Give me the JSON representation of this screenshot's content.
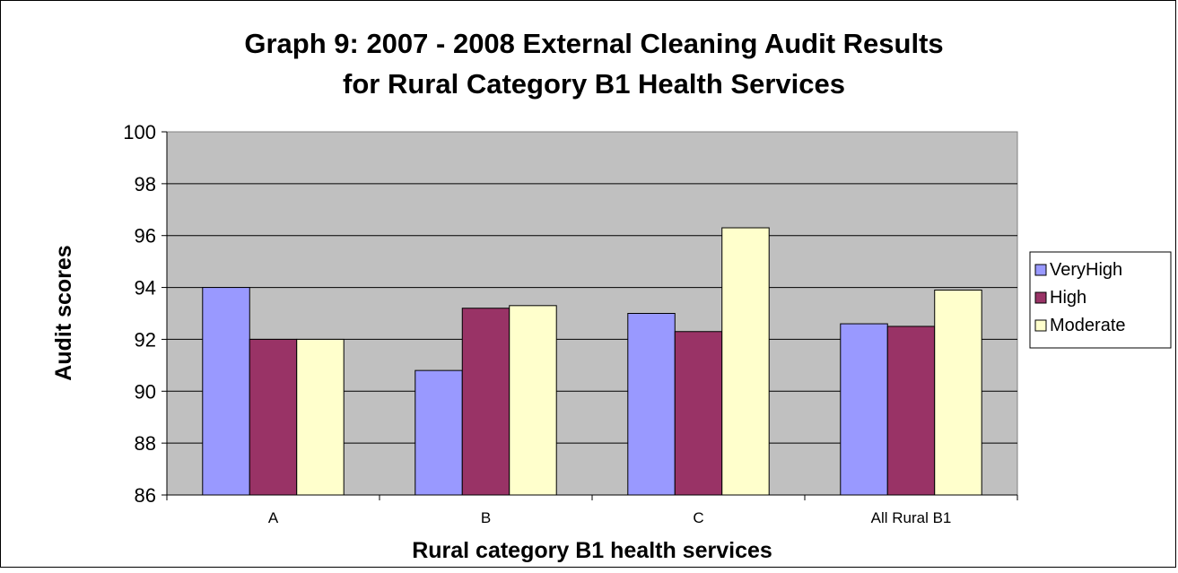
{
  "chart_data": {
    "type": "bar",
    "title_lines": [
      "Graph 9: 2007 - 2008 External Cleaning Audit Results",
      "for Rural Category B1 Health Services"
    ],
    "xlabel": "Rural category B1 health services",
    "ylabel": "Audit scores",
    "categories": [
      "A",
      "B",
      "C",
      "All Rural B1"
    ],
    "ylim": [
      86,
      100
    ],
    "yticks": [
      "86",
      "88",
      "90",
      "92",
      "94",
      "96",
      "98",
      "100"
    ],
    "series": [
      {
        "name": "VeryHigh",
        "color": "#9999FF",
        "values": [
          94.0,
          90.8,
          93.0,
          92.6
        ]
      },
      {
        "name": "High",
        "color": "#993366",
        "values": [
          92.0,
          93.2,
          92.3,
          92.5
        ]
      },
      {
        "name": "Moderate",
        "color": "#FFFFCC",
        "values": [
          92.0,
          93.3,
          96.3,
          93.9
        ]
      }
    ],
    "grid": true,
    "plot_background": "#C0C0C0",
    "legend_position": "right"
  }
}
